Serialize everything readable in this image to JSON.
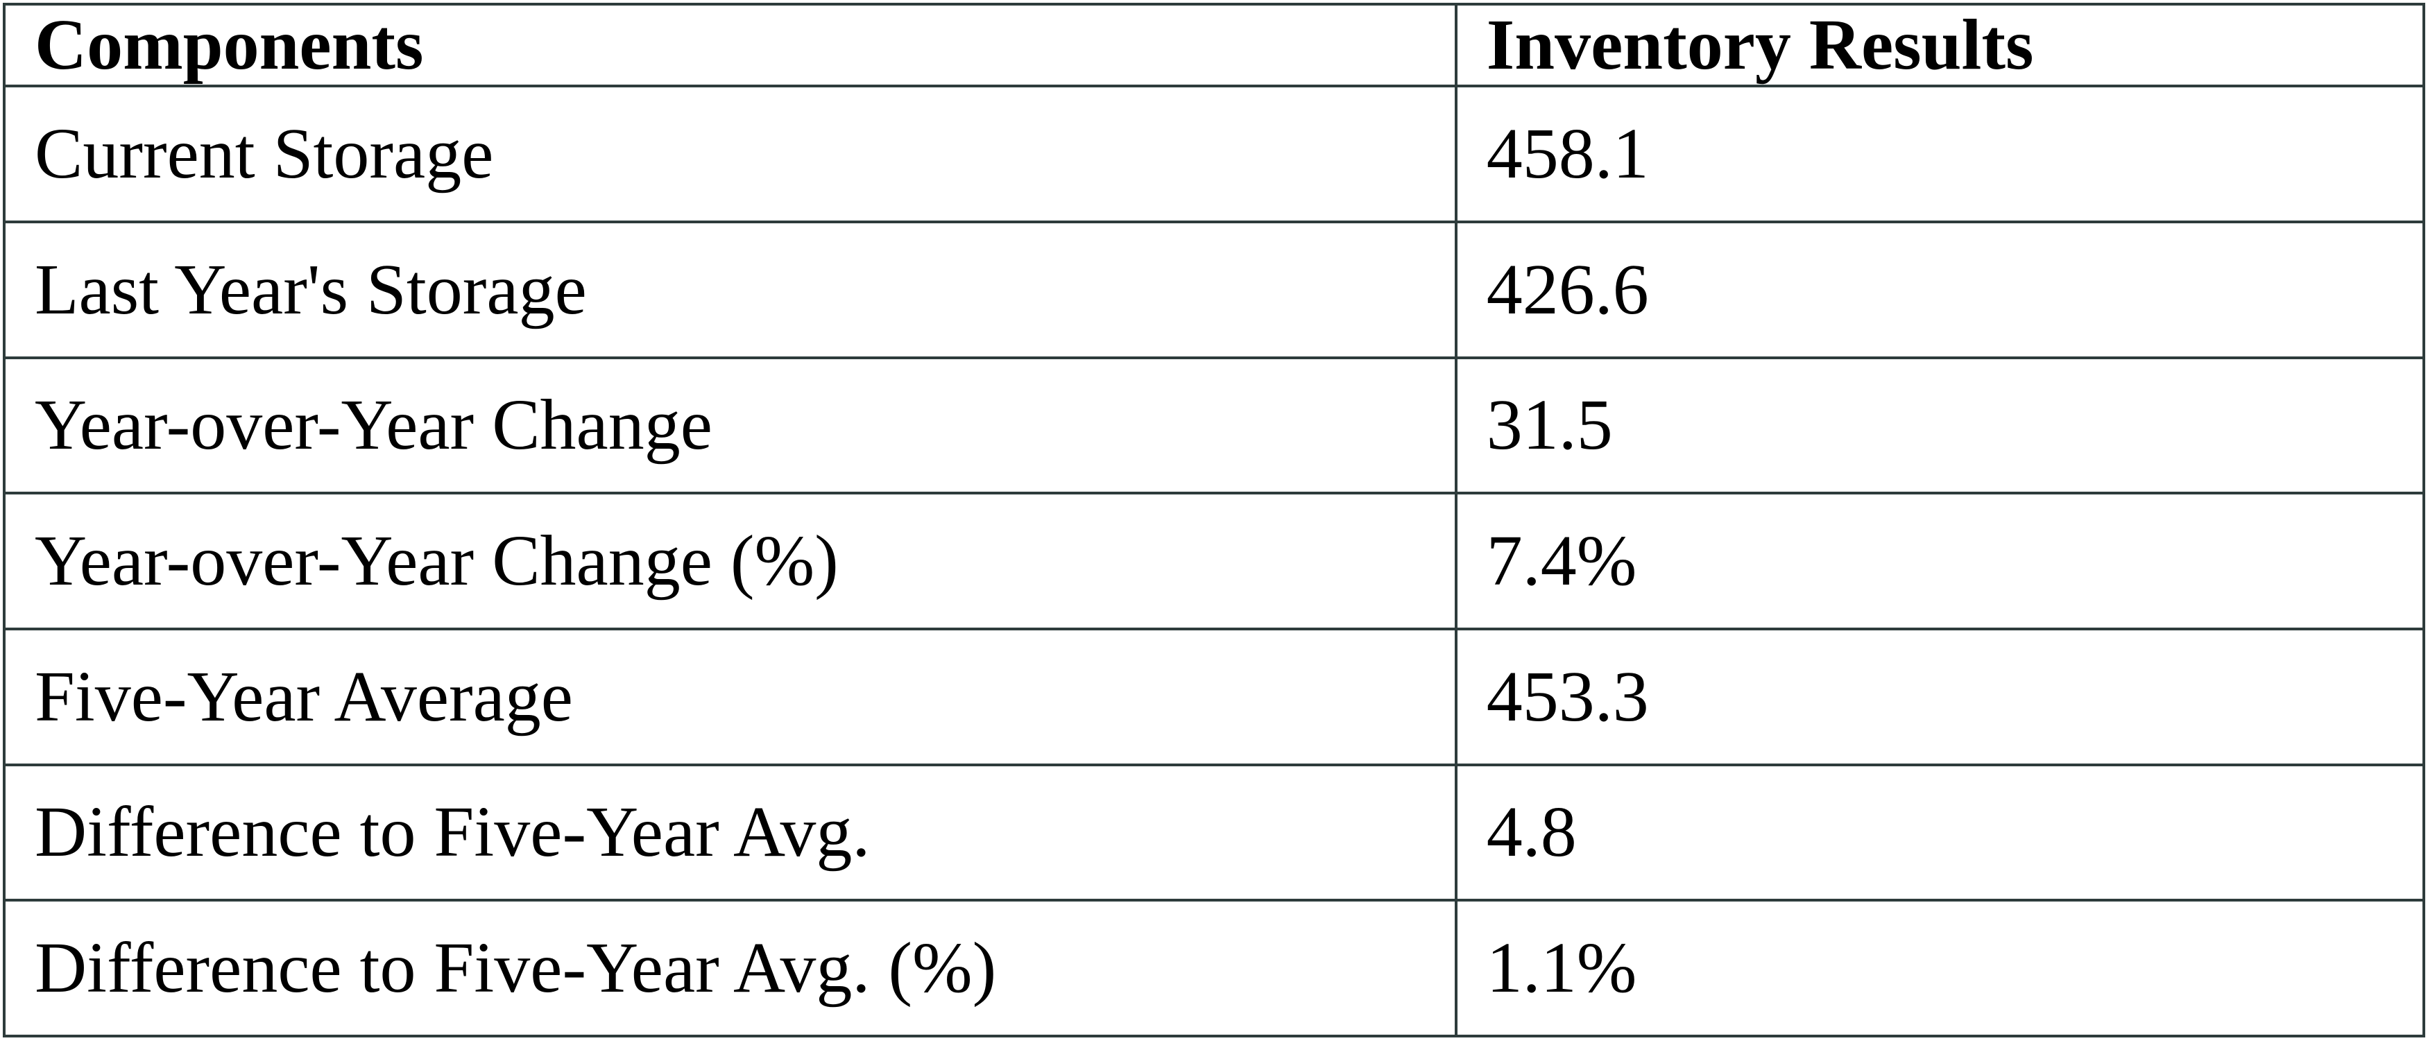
{
  "table": {
    "headers": [
      "Components",
      "Inventory Results"
    ],
    "rows": [
      {
        "component": "Current Storage",
        "value": "458.1"
      },
      {
        "component": "Last Year's Storage",
        "value": "426.6"
      },
      {
        "component": "Year-over-Year Change",
        "value": "31.5"
      },
      {
        "component": "Year-over-Year Change (%)",
        "value": "7.4%"
      },
      {
        "component": "Five-Year Average",
        "value": "453.3"
      },
      {
        "component": "Difference to Five-Year Avg.",
        "value": "4.8"
      },
      {
        "component": "Difference to Five-Year Avg. (%)",
        "value": "1.1%"
      }
    ]
  },
  "chart_data": {
    "type": "table",
    "title": "",
    "columns": [
      "Components",
      "Inventory Results"
    ],
    "rows": [
      [
        "Current Storage",
        "458.1"
      ],
      [
        "Last Year's Storage",
        "426.6"
      ],
      [
        "Year-over-Year Change",
        "31.5"
      ],
      [
        "Year-over-Year Change (%)",
        "7.4%"
      ],
      [
        "Five-Year Average",
        "453.3"
      ],
      [
        "Difference to Five-Year Avg.",
        "4.8"
      ],
      [
        "Difference to Five-Year Avg. (%)",
        "1.1%"
      ]
    ]
  },
  "colors": {
    "border": "#2e3c3c",
    "text": "#000000",
    "background": "#ffffff"
  }
}
